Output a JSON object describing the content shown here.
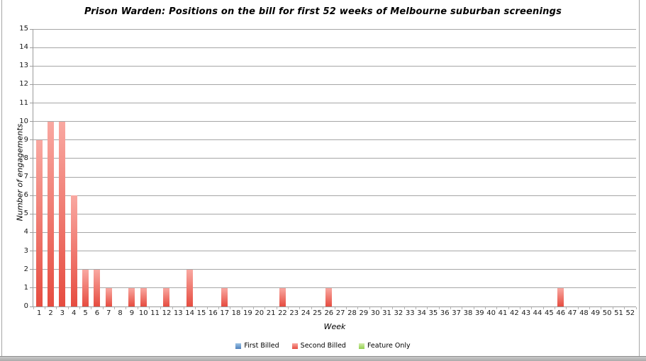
{
  "window": {
    "background": "#ffffff",
    "frame_border_color": "#a6a6a6",
    "bottom_edge_color": "#ababab"
  },
  "chart_data": {
    "type": "bar",
    "title": "Prison Warden: Positions on the bill for first 52 weeks of Melbourne suburban screenings",
    "xlabel": "Week",
    "ylabel": "Number of engagements",
    "categories": [
      1,
      2,
      3,
      4,
      5,
      6,
      7,
      8,
      9,
      10,
      11,
      12,
      13,
      14,
      15,
      16,
      17,
      18,
      19,
      20,
      21,
      22,
      23,
      24,
      25,
      26,
      27,
      28,
      29,
      30,
      31,
      32,
      33,
      34,
      35,
      36,
      37,
      38,
      39,
      40,
      41,
      42,
      43,
      44,
      45,
      46,
      47,
      48,
      49,
      50,
      51,
      52
    ],
    "series": [
      {
        "name": "First Billed",
        "color_top": "#9cc3e5",
        "color_bottom": "#4f81bd",
        "values": [
          0,
          0,
          0,
          0,
          0,
          0,
          0,
          0,
          0,
          0,
          0,
          0,
          0,
          0,
          0,
          0,
          0,
          0,
          0,
          0,
          0,
          0,
          0,
          0,
          0,
          0,
          0,
          0,
          0,
          0,
          0,
          0,
          0,
          0,
          0,
          0,
          0,
          0,
          0,
          0,
          0,
          0,
          0,
          0,
          0,
          0,
          0,
          0,
          0,
          0,
          0,
          0
        ]
      },
      {
        "name": "Second Billed",
        "color_top": "#f9a8a1",
        "color_bottom": "#e64c40",
        "values": [
          9,
          10,
          10,
          6,
          2,
          2,
          1,
          0,
          1,
          1,
          0,
          1,
          0,
          2,
          0,
          0,
          1,
          0,
          0,
          0,
          0,
          1,
          0,
          0,
          0,
          1,
          0,
          0,
          0,
          0,
          0,
          0,
          0,
          0,
          0,
          0,
          0,
          0,
          0,
          0,
          0,
          0,
          0,
          0,
          0,
          1,
          0,
          0,
          0,
          0,
          0,
          0
        ]
      },
      {
        "name": "Feature Only",
        "color_top": "#d3ecab",
        "color_bottom": "#92d050",
        "values": [
          0,
          0,
          0,
          0,
          0,
          0,
          0,
          0,
          0,
          0,
          0,
          0,
          0,
          0,
          0,
          0,
          0,
          0,
          0,
          0,
          0,
          0,
          0,
          0,
          0,
          0,
          0,
          0,
          0,
          0,
          0,
          0,
          0,
          0,
          0,
          0,
          0,
          0,
          0,
          0,
          0,
          0,
          0,
          0,
          0,
          0,
          0,
          0,
          0,
          0,
          0,
          0
        ]
      }
    ],
    "ylim": [
      0,
      15
    ],
    "ytick_step": 1,
    "grid": true,
    "gridline_color": "#a6a6a6",
    "legend_position": "bottom"
  }
}
